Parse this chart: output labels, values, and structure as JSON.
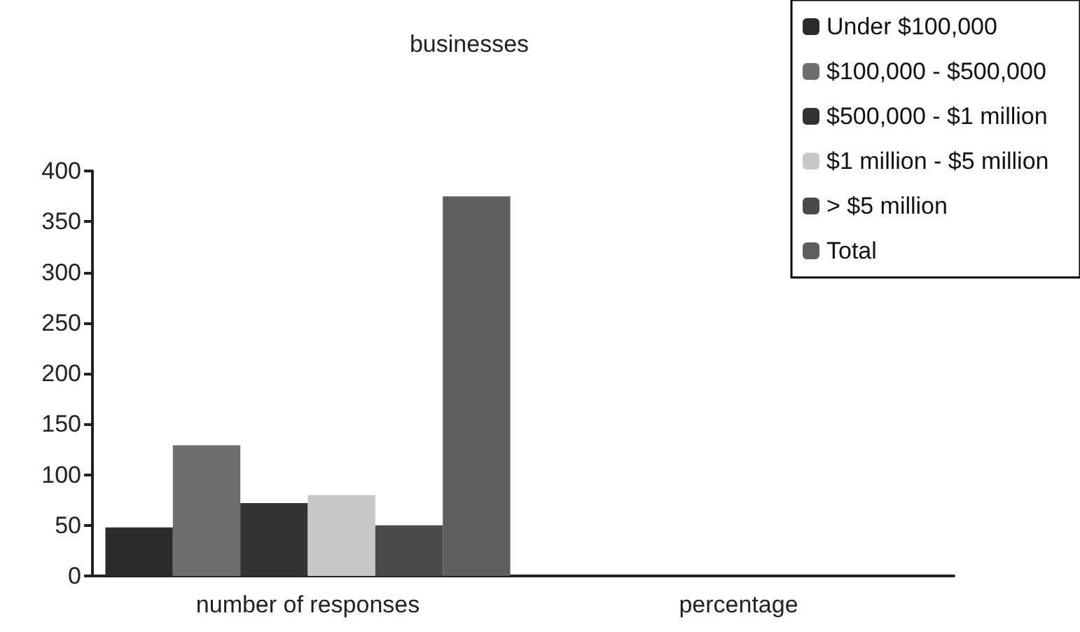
{
  "chart_data": {
    "type": "bar",
    "title": "businesses",
    "categories": [
      "number of responses",
      "percentage"
    ],
    "series": [
      {
        "name": "Under $100,000",
        "color": "#2b2b2b",
        "values": [
          48,
          0
        ]
      },
      {
        "name": "$100,000 - $500,000",
        "color": "#6e6e6e",
        "values": [
          129,
          0
        ]
      },
      {
        "name": "$500,000 - $1 million",
        "color": "#333333",
        "values": [
          72,
          0
        ]
      },
      {
        "name": "$1 million - $5 million",
        "color": "#c8c8c8",
        "values": [
          80,
          0
        ]
      },
      {
        "name": "> $5 million",
        "color": "#4a4a4a",
        "values": [
          50,
          0
        ]
      },
      {
        "name": "Total",
        "color": "#5e5e5e",
        "values": [
          375,
          0
        ]
      }
    ],
    "ylim": [
      0,
      400
    ],
    "yticks": [
      0,
      50,
      100,
      150,
      200,
      250,
      300,
      350,
      400
    ],
    "grid": false,
    "legend": "top right"
  }
}
